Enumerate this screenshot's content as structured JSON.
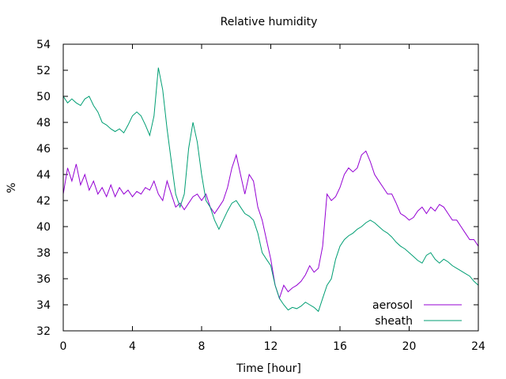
{
  "chart_data": {
    "type": "line",
    "title": "Relative humidity",
    "xlabel": "Time [hour]",
    "ylabel": "%",
    "xlim": [
      0,
      24
    ],
    "ylim": [
      32,
      54
    ],
    "xticks": [
      0,
      4,
      8,
      12,
      16,
      20,
      24
    ],
    "yticks": [
      32,
      34,
      36,
      38,
      40,
      42,
      44,
      46,
      48,
      50,
      52,
      54
    ],
    "grid": false,
    "legend_position": "bottom-right",
    "series": [
      {
        "name": "aerosol",
        "color": "#9400d3",
        "points": [
          [
            0.0,
            42.5
          ],
          [
            0.25,
            44.5
          ],
          [
            0.5,
            43.5
          ],
          [
            0.75,
            44.8
          ],
          [
            1.0,
            43.2
          ],
          [
            1.25,
            44.0
          ],
          [
            1.5,
            42.8
          ],
          [
            1.75,
            43.5
          ],
          [
            2.0,
            42.5
          ],
          [
            2.25,
            43.0
          ],
          [
            2.5,
            42.3
          ],
          [
            2.75,
            43.2
          ],
          [
            3.0,
            42.3
          ],
          [
            3.25,
            43.0
          ],
          [
            3.5,
            42.5
          ],
          [
            3.75,
            42.8
          ],
          [
            4.0,
            42.3
          ],
          [
            4.25,
            42.7
          ],
          [
            4.5,
            42.5
          ],
          [
            4.75,
            43.0
          ],
          [
            5.0,
            42.8
          ],
          [
            5.25,
            43.5
          ],
          [
            5.5,
            42.5
          ],
          [
            5.75,
            42.0
          ],
          [
            6.0,
            43.5
          ],
          [
            6.25,
            42.5
          ],
          [
            6.5,
            41.5
          ],
          [
            6.75,
            41.8
          ],
          [
            7.0,
            41.3
          ],
          [
            7.25,
            41.8
          ],
          [
            7.5,
            42.3
          ],
          [
            7.75,
            42.5
          ],
          [
            8.0,
            42.0
          ],
          [
            8.25,
            42.5
          ],
          [
            8.5,
            41.5
          ],
          [
            8.75,
            41.0
          ],
          [
            9.0,
            41.5
          ],
          [
            9.25,
            42.0
          ],
          [
            9.5,
            43.0
          ],
          [
            9.75,
            44.5
          ],
          [
            10.0,
            45.5
          ],
          [
            10.25,
            44.0
          ],
          [
            10.5,
            42.5
          ],
          [
            10.75,
            44.0
          ],
          [
            11.0,
            43.5
          ],
          [
            11.25,
            41.5
          ],
          [
            11.5,
            40.5
          ],
          [
            11.75,
            39.0
          ],
          [
            12.0,
            37.5
          ],
          [
            12.25,
            35.5
          ],
          [
            12.5,
            34.5
          ],
          [
            12.75,
            35.5
          ],
          [
            13.0,
            35.0
          ],
          [
            13.25,
            35.3
          ],
          [
            13.5,
            35.5
          ],
          [
            13.75,
            35.8
          ],
          [
            14.0,
            36.3
          ],
          [
            14.25,
            37.0
          ],
          [
            14.5,
            36.5
          ],
          [
            14.75,
            36.8
          ],
          [
            15.0,
            38.5
          ],
          [
            15.25,
            42.5
          ],
          [
            15.5,
            42.0
          ],
          [
            15.75,
            42.3
          ],
          [
            16.0,
            43.0
          ],
          [
            16.25,
            44.0
          ],
          [
            16.5,
            44.5
          ],
          [
            16.75,
            44.2
          ],
          [
            17.0,
            44.5
          ],
          [
            17.25,
            45.5
          ],
          [
            17.5,
            45.8
          ],
          [
            17.75,
            45.0
          ],
          [
            18.0,
            44.0
          ],
          [
            18.25,
            43.5
          ],
          [
            18.5,
            43.0
          ],
          [
            18.75,
            42.5
          ],
          [
            19.0,
            42.5
          ],
          [
            19.25,
            41.8
          ],
          [
            19.5,
            41.0
          ],
          [
            19.75,
            40.8
          ],
          [
            20.0,
            40.5
          ],
          [
            20.25,
            40.7
          ],
          [
            20.5,
            41.2
          ],
          [
            20.75,
            41.5
          ],
          [
            21.0,
            41.0
          ],
          [
            21.25,
            41.5
          ],
          [
            21.5,
            41.2
          ],
          [
            21.75,
            41.7
          ],
          [
            22.0,
            41.5
          ],
          [
            22.25,
            41.0
          ],
          [
            22.5,
            40.5
          ],
          [
            22.75,
            40.5
          ],
          [
            23.0,
            40.0
          ],
          [
            23.25,
            39.5
          ],
          [
            23.5,
            39.0
          ],
          [
            23.75,
            39.0
          ],
          [
            24.0,
            38.5
          ]
        ]
      },
      {
        "name": "sheath",
        "color": "#009e73",
        "points": [
          [
            0.0,
            50.0
          ],
          [
            0.25,
            49.5
          ],
          [
            0.5,
            49.8
          ],
          [
            0.75,
            49.5
          ],
          [
            1.0,
            49.3
          ],
          [
            1.25,
            49.8
          ],
          [
            1.5,
            50.0
          ],
          [
            1.75,
            49.3
          ],
          [
            2.0,
            48.8
          ],
          [
            2.25,
            48.0
          ],
          [
            2.5,
            47.8
          ],
          [
            2.75,
            47.5
          ],
          [
            3.0,
            47.3
          ],
          [
            3.25,
            47.5
          ],
          [
            3.5,
            47.2
          ],
          [
            3.75,
            47.8
          ],
          [
            4.0,
            48.5
          ],
          [
            4.25,
            48.8
          ],
          [
            4.5,
            48.5
          ],
          [
            4.75,
            47.8
          ],
          [
            5.0,
            47.0
          ],
          [
            5.25,
            48.5
          ],
          [
            5.5,
            52.2
          ],
          [
            5.75,
            50.5
          ],
          [
            6.0,
            47.5
          ],
          [
            6.25,
            45.0
          ],
          [
            6.5,
            42.5
          ],
          [
            6.75,
            41.5
          ],
          [
            7.0,
            42.5
          ],
          [
            7.25,
            46.0
          ],
          [
            7.5,
            48.0
          ],
          [
            7.75,
            46.5
          ],
          [
            8.0,
            44.0
          ],
          [
            8.25,
            42.0
          ],
          [
            8.5,
            41.5
          ],
          [
            8.75,
            40.5
          ],
          [
            9.0,
            39.8
          ],
          [
            9.25,
            40.5
          ],
          [
            9.5,
            41.2
          ],
          [
            9.75,
            41.8
          ],
          [
            10.0,
            42.0
          ],
          [
            10.25,
            41.5
          ],
          [
            10.5,
            41.0
          ],
          [
            10.75,
            40.8
          ],
          [
            11.0,
            40.5
          ],
          [
            11.25,
            39.5
          ],
          [
            11.5,
            38.0
          ],
          [
            11.75,
            37.5
          ],
          [
            12.0,
            37.0
          ],
          [
            12.25,
            35.5
          ],
          [
            12.5,
            34.5
          ],
          [
            12.75,
            34.0
          ],
          [
            13.0,
            33.6
          ],
          [
            13.25,
            33.8
          ],
          [
            13.5,
            33.7
          ],
          [
            13.75,
            33.9
          ],
          [
            14.0,
            34.2
          ],
          [
            14.25,
            34.0
          ],
          [
            14.5,
            33.8
          ],
          [
            14.75,
            33.5
          ],
          [
            15.0,
            34.5
          ],
          [
            15.25,
            35.5
          ],
          [
            15.5,
            36.0
          ],
          [
            15.75,
            37.5
          ],
          [
            16.0,
            38.5
          ],
          [
            16.25,
            39.0
          ],
          [
            16.5,
            39.3
          ],
          [
            16.75,
            39.5
          ],
          [
            17.0,
            39.8
          ],
          [
            17.25,
            40.0
          ],
          [
            17.5,
            40.3
          ],
          [
            17.75,
            40.5
          ],
          [
            18.0,
            40.3
          ],
          [
            18.25,
            40.0
          ],
          [
            18.5,
            39.7
          ],
          [
            18.75,
            39.5
          ],
          [
            19.0,
            39.2
          ],
          [
            19.25,
            38.8
          ],
          [
            19.5,
            38.5
          ],
          [
            19.75,
            38.3
          ],
          [
            20.0,
            38.0
          ],
          [
            20.25,
            37.7
          ],
          [
            20.5,
            37.4
          ],
          [
            20.75,
            37.2
          ],
          [
            21.0,
            37.8
          ],
          [
            21.25,
            38.0
          ],
          [
            21.5,
            37.5
          ],
          [
            21.75,
            37.2
          ],
          [
            22.0,
            37.5
          ],
          [
            22.25,
            37.3
          ],
          [
            22.5,
            37.0
          ],
          [
            22.75,
            36.8
          ],
          [
            23.0,
            36.6
          ],
          [
            23.25,
            36.4
          ],
          [
            23.5,
            36.2
          ],
          [
            23.75,
            35.8
          ],
          [
            24.0,
            35.5
          ]
        ]
      }
    ]
  }
}
